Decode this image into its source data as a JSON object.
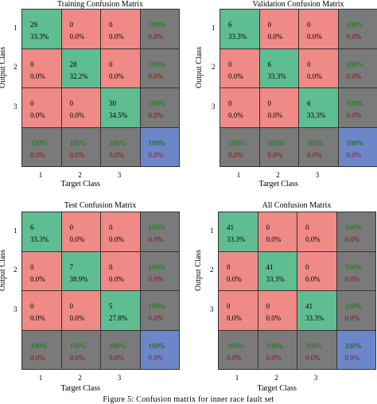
{
  "caption": "Figure 5: Confusion matrix for inner race fault set",
  "colors": {
    "correct": "#5fbd92",
    "incorrect": "#f08a86",
    "summary": "#7a7a7a",
    "total": "#6d86c8"
  },
  "chart_data": [
    {
      "type": "heatmap",
      "title": "Training Confusion Matrix",
      "xlabel": "Target Class",
      "ylabel": "Output Class",
      "classes": [
        "1",
        "2",
        "3"
      ],
      "counts": [
        [
          29,
          0,
          0
        ],
        [
          0,
          28,
          0
        ],
        [
          0,
          0,
          30
        ]
      ],
      "cell_percent": [
        [
          "33.3%",
          "0.0%",
          "0.0%"
        ],
        [
          "0.0%",
          "32.2%",
          "0.0%"
        ],
        [
          "0.0%",
          "0.0%",
          "34.5%"
        ]
      ],
      "row_summary": [
        [
          "100%",
          "0.0%"
        ],
        [
          "100%",
          "0.0%"
        ],
        [
          "100%",
          "0.0%"
        ]
      ],
      "col_summary": [
        [
          "100%",
          "0.0%"
        ],
        [
          "100%",
          "0.0%"
        ],
        [
          "100%",
          "0.0%"
        ]
      ],
      "total": [
        "100%",
        "0.0%"
      ]
    },
    {
      "type": "heatmap",
      "title": "Validation Confusion Matrix",
      "xlabel": "Target Class",
      "ylabel": "Output Class",
      "classes": [
        "1",
        "2",
        "3"
      ],
      "counts": [
        [
          6,
          0,
          0
        ],
        [
          0,
          6,
          0
        ],
        [
          0,
          0,
          6
        ]
      ],
      "cell_percent": [
        [
          "33.3%",
          "0.0%",
          "0.0%"
        ],
        [
          "0.0%",
          "33.3%",
          "0.0%"
        ],
        [
          "0.0%",
          "0.0%",
          "33.3%"
        ]
      ],
      "row_summary": [
        [
          "100%",
          "0.0%"
        ],
        [
          "100%",
          "0.0%"
        ],
        [
          "100%",
          "0.0%"
        ]
      ],
      "col_summary": [
        [
          "100%",
          "0.0%"
        ],
        [
          "100%",
          "0.0%"
        ],
        [
          "100%",
          "0.0%"
        ]
      ],
      "total": [
        "100%",
        "0.0%"
      ]
    },
    {
      "type": "heatmap",
      "title": "Test Confusion Matrix",
      "xlabel": "Target Class",
      "ylabel": "Output Class",
      "classes": [
        "1",
        "2",
        "3"
      ],
      "counts": [
        [
          6,
          0,
          0
        ],
        [
          0,
          7,
          0
        ],
        [
          0,
          0,
          5
        ]
      ],
      "cell_percent": [
        [
          "33.3%",
          "0.0%",
          "0.0%"
        ],
        [
          "0.0%",
          "38.9%",
          "0.0%"
        ],
        [
          "0.0%",
          "0.0%",
          "27.8%"
        ]
      ],
      "row_summary": [
        [
          "100%",
          "0.0%"
        ],
        [
          "100%",
          "0.0%"
        ],
        [
          "100%",
          "0.0%"
        ]
      ],
      "col_summary": [
        [
          "100%",
          "0.0%"
        ],
        [
          "100%",
          "0.0%"
        ],
        [
          "100%",
          "0.0%"
        ]
      ],
      "total": [
        "100%",
        "0.0%"
      ]
    },
    {
      "type": "heatmap",
      "title": "All Confusion Matrix",
      "xlabel": "Target Class",
      "ylabel": "Output Class",
      "classes": [
        "1",
        "2",
        "3"
      ],
      "counts": [
        [
          41,
          0,
          0
        ],
        [
          0,
          41,
          0
        ],
        [
          0,
          0,
          41
        ]
      ],
      "cell_percent": [
        [
          "33.3%",
          "0.0%",
          "0.0%"
        ],
        [
          "0.0%",
          "33.3%",
          "0.0%"
        ],
        [
          "0.0%",
          "0.0%",
          "33.3%"
        ]
      ],
      "row_summary": [
        [
          "100%",
          "0.0%"
        ],
        [
          "100%",
          "0.0%"
        ],
        [
          "100%",
          "0.0%"
        ]
      ],
      "col_summary": [
        [
          "100%",
          "0.0%"
        ],
        [
          "100%",
          "0.0%"
        ],
        [
          "100%",
          "0.0%"
        ]
      ],
      "total": [
        "100%",
        "0.0%"
      ]
    }
  ]
}
